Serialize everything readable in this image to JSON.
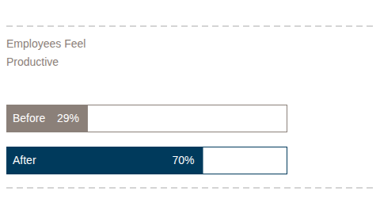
{
  "chart_data": {
    "type": "bar",
    "orientation": "horizontal",
    "title": "Employees Feel Productive",
    "categories": [
      "Before",
      "After"
    ],
    "values": [
      29,
      70
    ],
    "value_labels": [
      "29%",
      "70%"
    ],
    "data_labels": true,
    "colors": [
      "#8b8079",
      "#003a5c"
    ],
    "xlim": [
      0,
      100
    ],
    "tick_labels": false,
    "grid": false
  }
}
